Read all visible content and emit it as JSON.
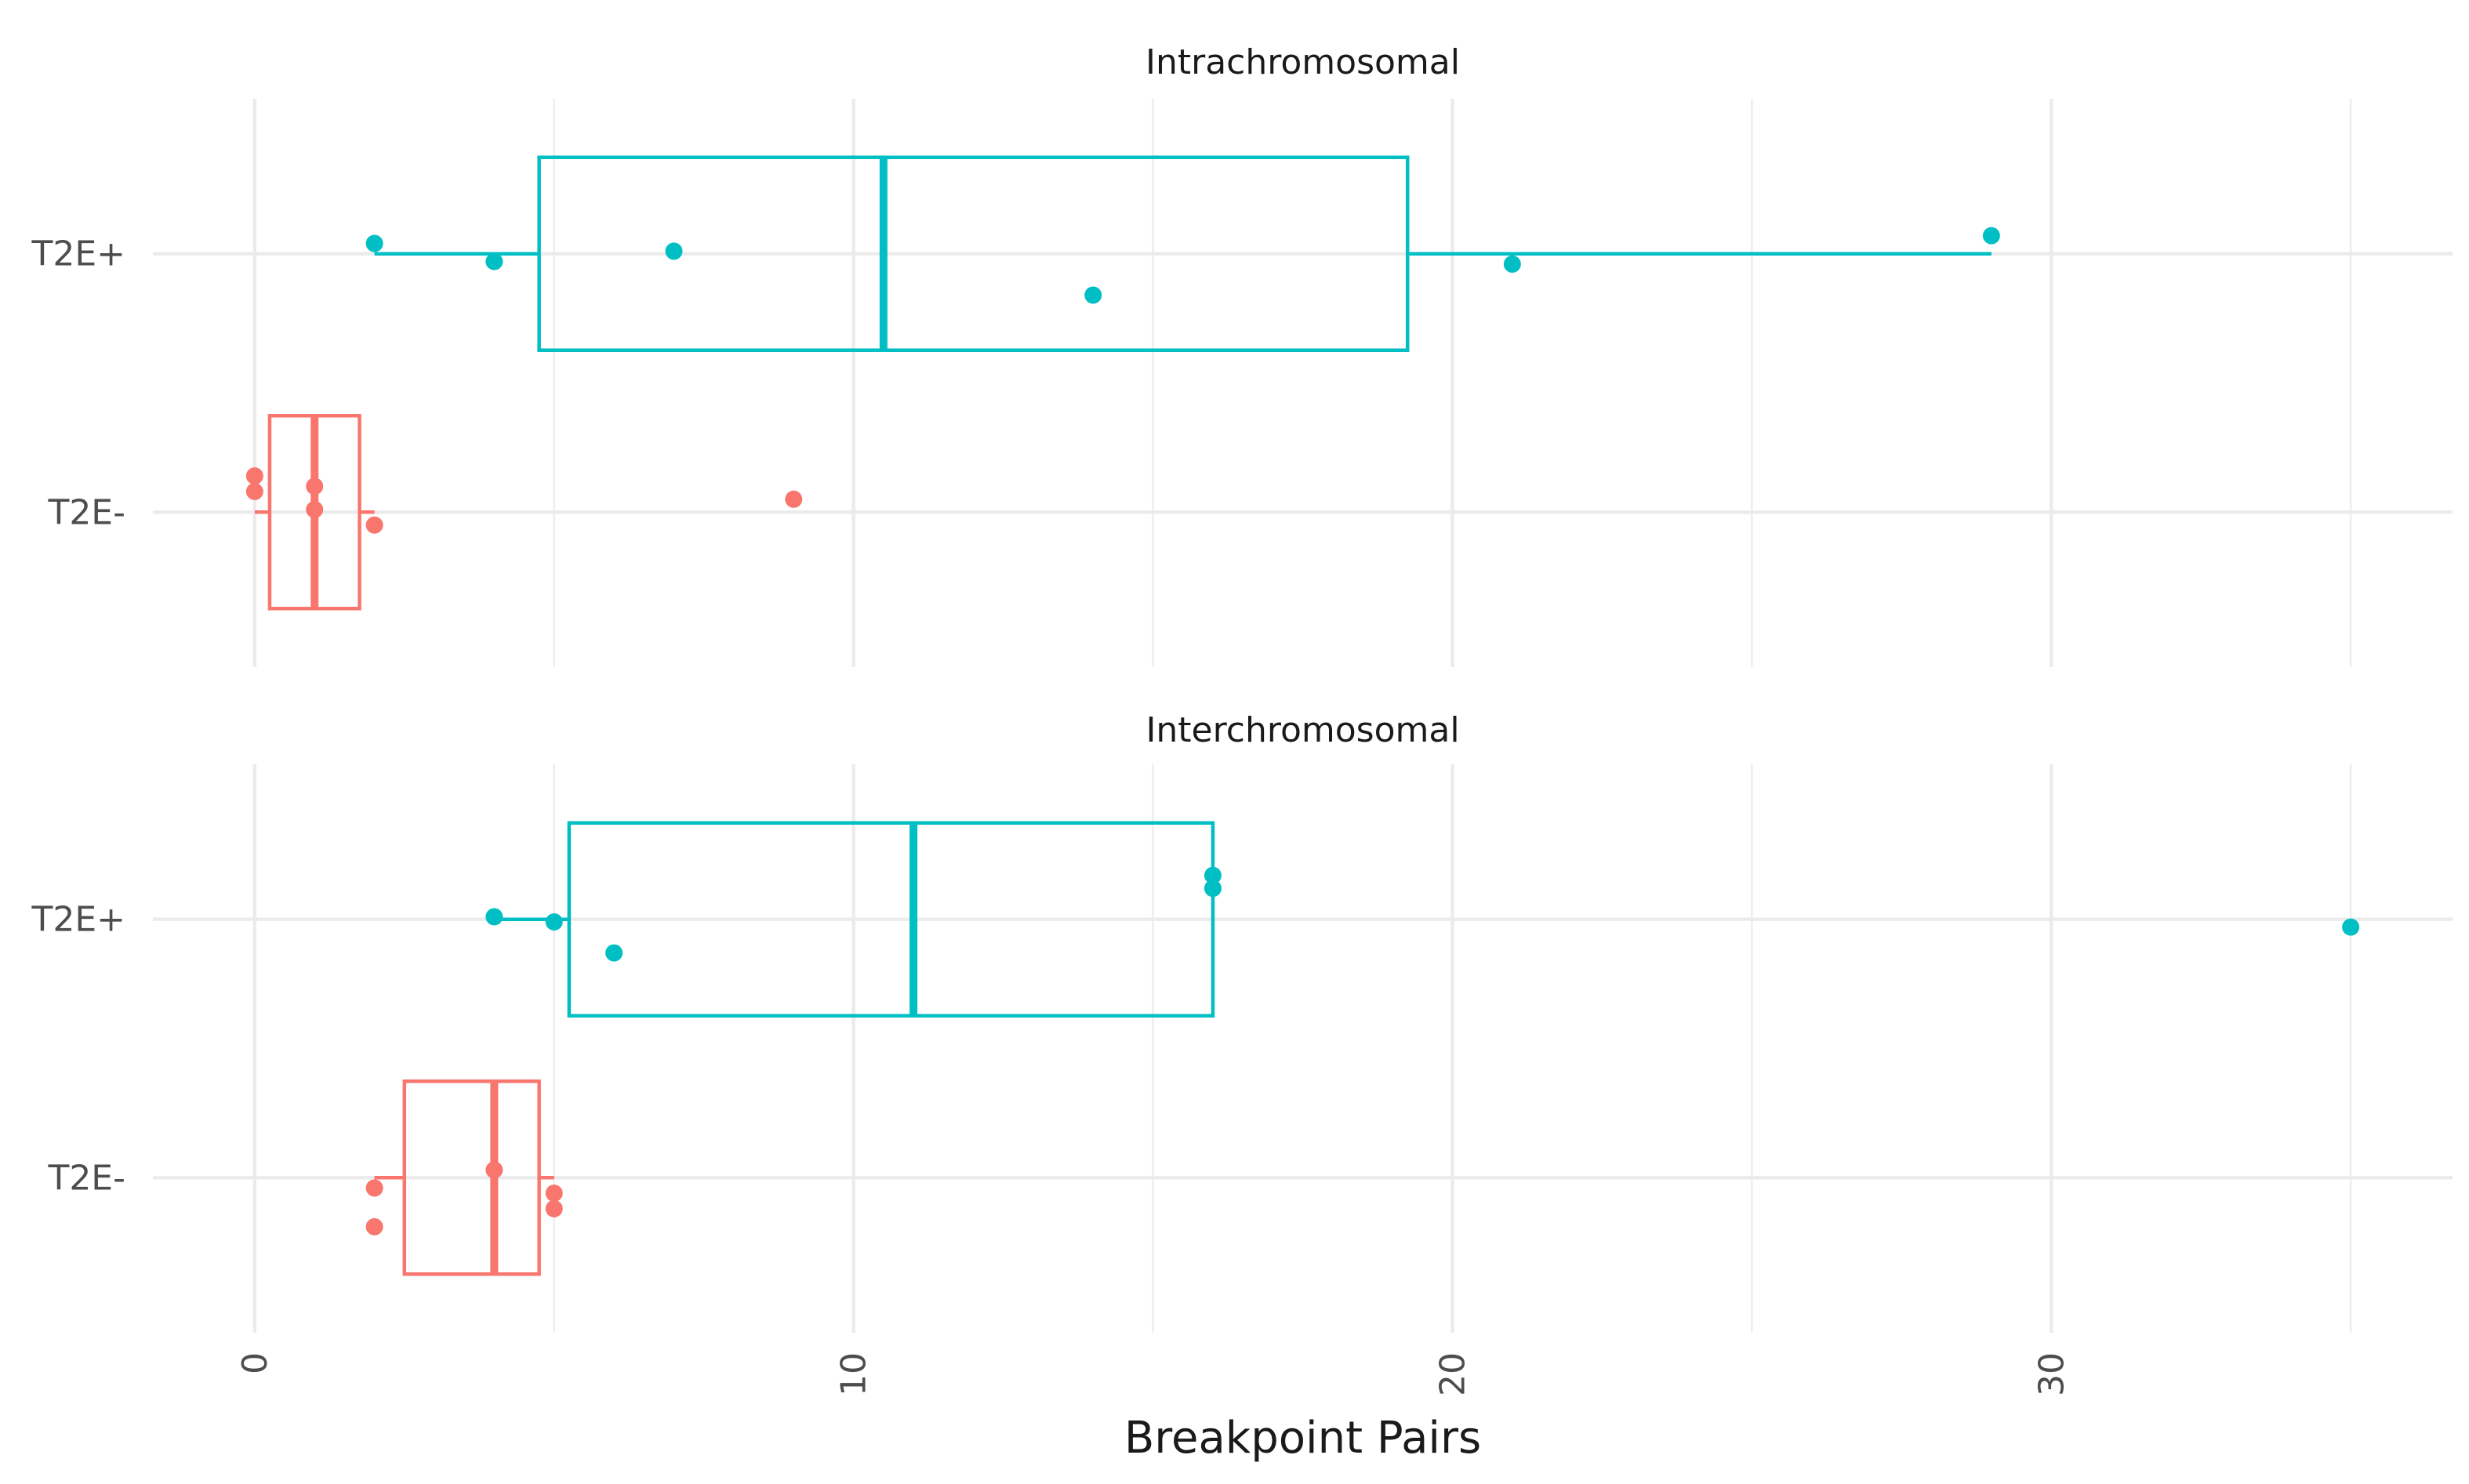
{
  "colors": {
    "T2E+": "#00BFC4",
    "T2E-": "#F8766D",
    "grid_major": "#EBEBEB",
    "grid_minor": "#EBEBEB",
    "text": "#4D4D4D",
    "title_text": "#1A1A1A"
  },
  "chart_data": {
    "type": "boxplot",
    "orientation": "horizontal",
    "xlabel": "Breakpoint Pairs",
    "xlim": [
      -1.7,
      36.7
    ],
    "x_ticks": [
      0,
      10,
      20,
      30
    ],
    "x_tick_labels": [
      "0",
      "10",
      "20",
      "30"
    ],
    "grid": true,
    "legend": "none",
    "panels": [
      {
        "title": "Intrachromosomal",
        "groups": [
          {
            "name": "T2E+",
            "box": {
              "lower_whisker": 2,
              "q1": 4.75,
              "median": 10.5,
              "q3": 19.25,
              "upper_whisker": 29
            },
            "points": [
              {
                "x": 2,
                "y_jitter": 0.04
              },
              {
                "x": 4,
                "y_jitter": -0.03
              },
              {
                "x": 7,
                "y_jitter": 0.01
              },
              {
                "x": 14,
                "y_jitter": -0.16
              },
              {
                "x": 21,
                "y_jitter": -0.04
              },
              {
                "x": 29,
                "y_jitter": 0.07
              }
            ]
          },
          {
            "name": "T2E-",
            "box": {
              "lower_whisker": 0,
              "q1": 0.25,
              "median": 1,
              "q3": 1.75,
              "upper_whisker": 2
            },
            "points": [
              {
                "x": 0,
                "y_jitter": 0.14
              },
              {
                "x": 0,
                "y_jitter": 0.08
              },
              {
                "x": 1,
                "y_jitter": 0.1
              },
              {
                "x": 1,
                "y_jitter": 0.01
              },
              {
                "x": 2,
                "y_jitter": -0.05
              },
              {
                "x": 9,
                "y_jitter": 0.05
              }
            ]
          }
        ]
      },
      {
        "title": "Interchromosomal",
        "groups": [
          {
            "name": "T2E+",
            "box": {
              "lower_whisker": 4,
              "q1": 5.25,
              "median": 11,
              "q3": 16,
              "upper_whisker": 16
            },
            "points": [
              {
                "x": 4,
                "y_jitter": 0.01
              },
              {
                "x": 5,
                "y_jitter": -0.01
              },
              {
                "x": 6,
                "y_jitter": -0.13
              },
              {
                "x": 16,
                "y_jitter": 0.17
              },
              {
                "x": 16,
                "y_jitter": 0.12
              },
              {
                "x": 35,
                "y_jitter": -0.03
              }
            ]
          },
          {
            "name": "T2E-",
            "box": {
              "lower_whisker": 2,
              "q1": 2.5,
              "median": 4,
              "q3": 4.75,
              "upper_whisker": 5
            },
            "points": [
              {
                "x": 2,
                "y_jitter": -0.04
              },
              {
                "x": 2,
                "y_jitter": -0.19
              },
              {
                "x": 4,
                "y_jitter": 0.03
              },
              {
                "x": 5,
                "y_jitter": -0.06
              },
              {
                "x": 5,
                "y_jitter": -0.12
              }
            ]
          }
        ]
      }
    ]
  }
}
